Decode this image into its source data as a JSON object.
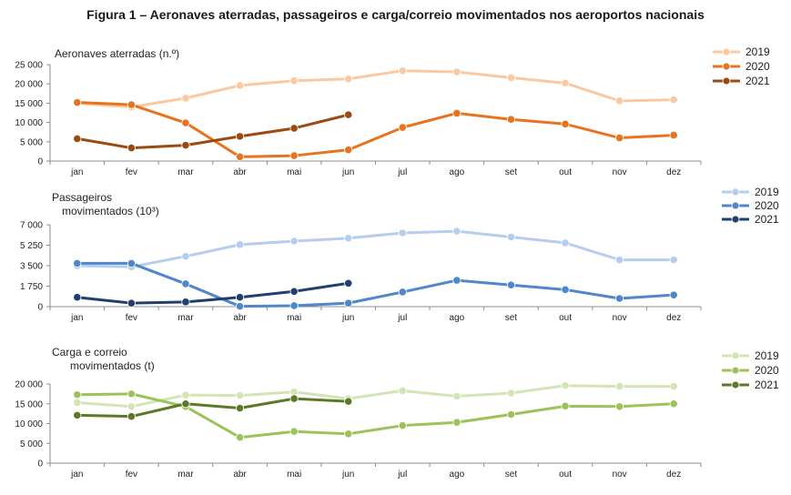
{
  "figure_title": "Figura 1 – Aeronaves aterradas, passageiros e carga/correio movimentados nos aeroportos nacionais",
  "chart_data": [
    {
      "type": "line",
      "title_lines": [
        "Aeronaves aterradas (n.º)"
      ],
      "categories": [
        "jan",
        "fev",
        "mar",
        "abr",
        "mai",
        "jun",
        "jul",
        "ago",
        "set",
        "out",
        "nov",
        "dez"
      ],
      "ylim": [
        0,
        25000
      ],
      "yticks": [
        0,
        5000,
        10000,
        15000,
        20000,
        25000
      ],
      "ytick_labels": [
        "0",
        "5 000",
        "10 000",
        "15 000",
        "20 000",
        "25 000"
      ],
      "grid": false,
      "legend_position": "top-right",
      "series": [
        {
          "name": "2019",
          "color": "#f9c9a3",
          "values": [
            15000,
            14000,
            16300,
            19600,
            20800,
            21300,
            23400,
            23100,
            21600,
            20200,
            15600,
            15900
          ]
        },
        {
          "name": "2020",
          "color": "#e8731f",
          "values": [
            15200,
            14600,
            9900,
            1100,
            1400,
            2900,
            8700,
            12400,
            10800,
            9600,
            6000,
            6700
          ]
        },
        {
          "name": "2021",
          "color": "#9c4a12",
          "values": [
            5800,
            3400,
            4100,
            6400,
            8500,
            12000,
            null,
            null,
            null,
            null,
            null,
            null
          ]
        }
      ]
    },
    {
      "type": "line",
      "title_lines": [
        "Passageiros",
        "movimentados (10³)"
      ],
      "categories": [
        "jan",
        "fev",
        "mar",
        "abr",
        "mai",
        "jun",
        "jul",
        "ago",
        "set",
        "out",
        "nov",
        "dez"
      ],
      "ylim": [
        0,
        7000
      ],
      "yticks": [
        0,
        1750,
        3500,
        5250,
        7000
      ],
      "ytick_labels": [
        "0",
        "1 750",
        "3 500",
        "5 250",
        "7 000"
      ],
      "grid": false,
      "legend_position": "top-right",
      "series": [
        {
          "name": "2019",
          "color": "#b7cdee",
          "values": [
            3500,
            3400,
            4300,
            5300,
            5600,
            5850,
            6300,
            6450,
            5950,
            5450,
            4000,
            4000
          ]
        },
        {
          "name": "2020",
          "color": "#4f86cc",
          "values": [
            3700,
            3700,
            1950,
            30,
            80,
            300,
            1250,
            2250,
            1850,
            1450,
            700,
            1000
          ]
        },
        {
          "name": "2021",
          "color": "#1f3f6e",
          "values": [
            800,
            300,
            400,
            800,
            1300,
            2000,
            null,
            null,
            null,
            null,
            null,
            null
          ]
        }
      ]
    },
    {
      "type": "line",
      "title_lines": [
        "Carga e correio",
        "movimentados (t)"
      ],
      "categories": [
        "jan",
        "fev",
        "mar",
        "abr",
        "mai",
        "jun",
        "jul",
        "ago",
        "set",
        "out",
        "nov",
        "dez"
      ],
      "ylim": [
        0,
        20000
      ],
      "yticks": [
        0,
        5000,
        10000,
        15000,
        20000
      ],
      "ytick_labels": [
        "0",
        "5 000",
        "10 000",
        "15 000",
        "20 000"
      ],
      "grid": false,
      "legend_position": "top-right",
      "series": [
        {
          "name": "2019",
          "color": "#d3e4b5",
          "values": [
            15300,
            14300,
            17200,
            17100,
            18000,
            16300,
            18300,
            16900,
            17700,
            19600,
            19400,
            19400
          ]
        },
        {
          "name": "2020",
          "color": "#9cc25a",
          "values": [
            17300,
            17500,
            14300,
            6500,
            8000,
            7400,
            9500,
            10300,
            12300,
            14400,
            14300,
            15000
          ]
        },
        {
          "name": "2021",
          "color": "#5b7a29",
          "values": [
            12100,
            11800,
            15000,
            13900,
            16300,
            15600,
            null,
            null,
            null,
            null,
            null,
            null
          ]
        }
      ]
    }
  ]
}
